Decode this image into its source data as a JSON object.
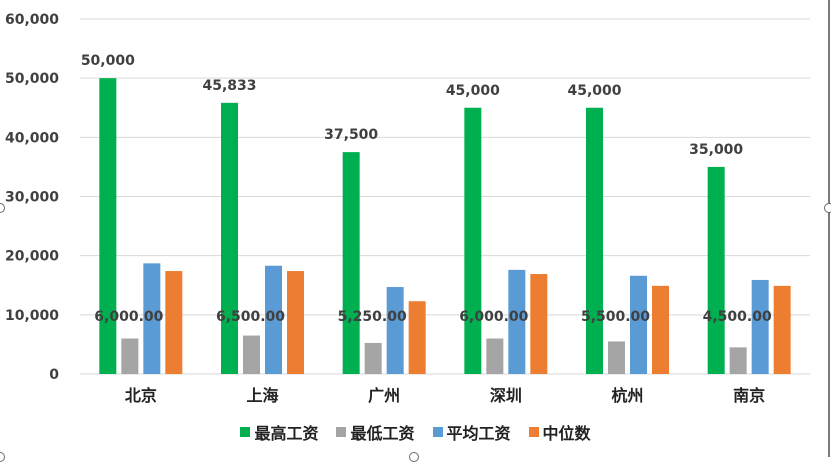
{
  "chart_data": {
    "type": "bar",
    "title": "",
    "xlabel": "",
    "ylabel": "",
    "categories": [
      "北京",
      "上海",
      "广州",
      "深圳",
      "杭州",
      "南京"
    ],
    "series": [
      {
        "name": "最高工资",
        "color": "#00B050",
        "values": [
          50000,
          45833,
          37500,
          45000,
          45000,
          35000
        ],
        "labels": [
          "50,000",
          "45,833",
          "37,500",
          "45,000",
          "45,000",
          "35,000"
        ]
      },
      {
        "name": "最低工资",
        "color": "#A5A5A5",
        "values": [
          6000,
          6500,
          5250,
          6000,
          5500,
          4500
        ],
        "labels": [
          "6,000.00",
          "6,500.00",
          "5,250.00",
          "6,000.00",
          "5,500.00",
          "4,500.00"
        ]
      },
      {
        "name": "平均工资",
        "color": "#5B9BD5",
        "values": [
          18700,
          18300,
          14700,
          17600,
          16600,
          15900
        ]
      },
      {
        "name": "中位数",
        "color": "#ED7D31",
        "values": [
          17400,
          17400,
          12300,
          16900,
          14900,
          14900
        ]
      }
    ],
    "ylim": [
      0,
      60000
    ],
    "yticks": [
      0,
      10000,
      20000,
      30000,
      40000,
      50000,
      60000
    ],
    "ytick_labels": [
      "0",
      "10,000",
      "20,000",
      "30,000",
      "40,000",
      "50,000",
      "60,000"
    ],
    "grid": true,
    "legend_position": "bottom"
  },
  "legend": [
    {
      "label": "最高工资",
      "color": "#00B050"
    },
    {
      "label": "最低工资",
      "color": "#A5A5A5"
    },
    {
      "label": "平均工资",
      "color": "#5B9BD5"
    },
    {
      "label": "中位数",
      "color": "#ED7D31"
    }
  ]
}
